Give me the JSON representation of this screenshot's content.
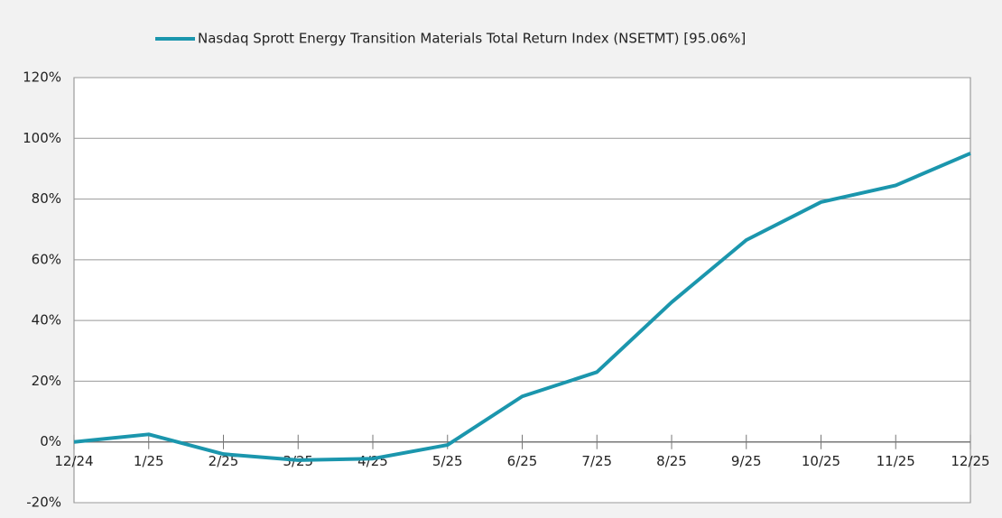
{
  "chart_data": {
    "type": "line",
    "categories": [
      "12/24",
      "1/25",
      "2/25",
      "3/25",
      "4/25",
      "5/25",
      "6/25",
      "7/25",
      "8/25",
      "9/25",
      "10/25",
      "11/25",
      "12/25"
    ],
    "series": [
      {
        "name": "Nasdaq Sprott Energy Transition Materials Total Return Index (NSETMT) [95.06%]",
        "color": "#1b96ad",
        "values": [
          0,
          2.5,
          -4,
          -6,
          -5.5,
          -1,
          15,
          23,
          46,
          66.5,
          79,
          84.5,
          95.06
        ]
      }
    ],
    "ylim": [
      -20,
      120
    ],
    "yticks": [
      {
        "value": -20,
        "label": "-20%"
      },
      {
        "value": 0,
        "label": "0%"
      },
      {
        "value": 20,
        "label": "20%"
      },
      {
        "value": 40,
        "label": "40%"
      },
      {
        "value": 60,
        "label": "60%"
      },
      {
        "value": 80,
        "label": "80%"
      },
      {
        "value": 100,
        "label": "100%"
      },
      {
        "value": 120,
        "label": "120%"
      }
    ],
    "grid": true,
    "legend": "top"
  }
}
